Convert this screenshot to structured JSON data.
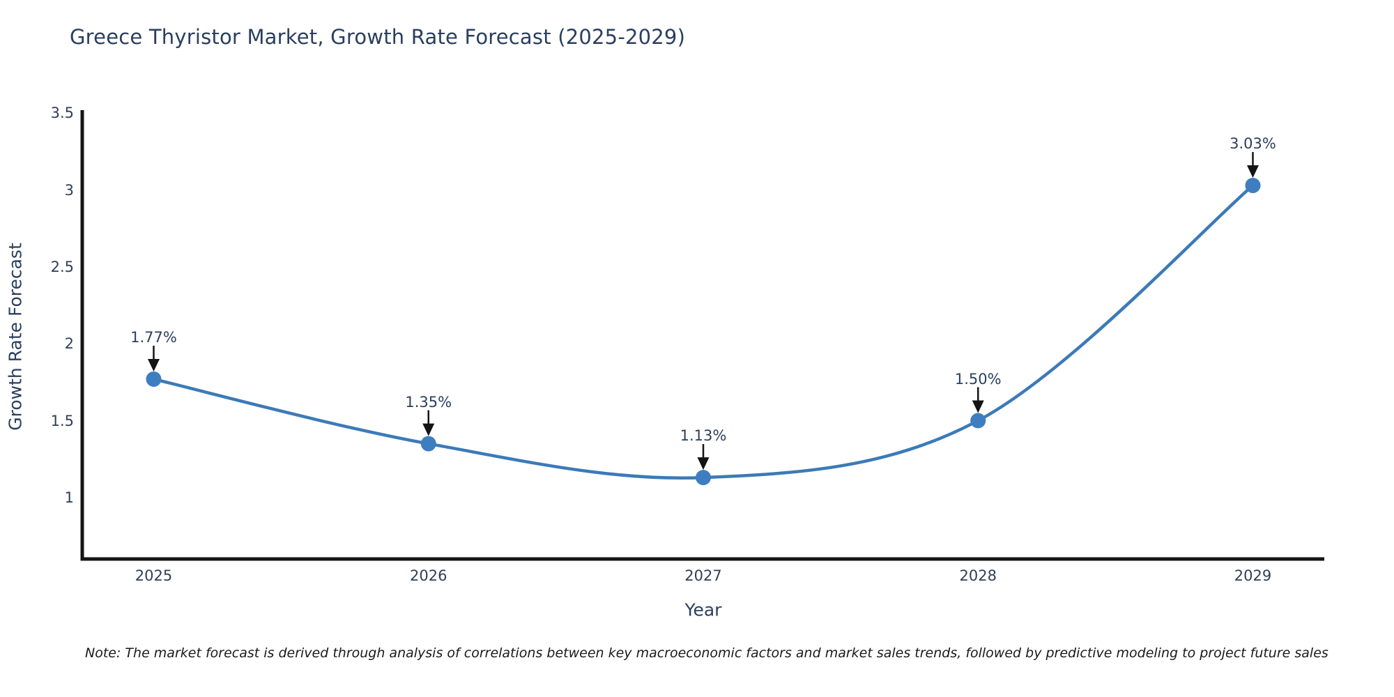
{
  "chart_data": {
    "type": "line",
    "title": "Greece Thyristor Market, Growth Rate Forecast (2025-2029)",
    "xlabel": "Year",
    "ylabel": "Growth Rate Forecast",
    "x": [
      2025,
      2026,
      2027,
      2028,
      2029
    ],
    "series": [
      {
        "name": "Growth Rate Forecast",
        "values": [
          1.77,
          1.35,
          1.13,
          1.5,
          3.03
        ]
      }
    ],
    "point_labels": [
      "1.77%",
      "1.35%",
      "1.13%",
      "1.50%",
      "3.03%"
    ],
    "xtick_labels": [
      "2025",
      "2026",
      "2027",
      "2028",
      "2029"
    ],
    "ytick_values": [
      1,
      1.5,
      2,
      2.5,
      3,
      3.5
    ],
    "ytick_labels": [
      "1",
      "1.5",
      "2",
      "2.5",
      "3",
      "3.5"
    ],
    "xlim": [
      2024.74,
      2029.26
    ],
    "ylim": [
      0.6,
      3.52
    ],
    "grid": false,
    "legend_position": "none",
    "line_shape": "spline",
    "colors": {
      "line": "#3c7ab7",
      "marker": "#3e7ec0",
      "axis": "#141414",
      "annotation_arrow": "#141414",
      "title_text": "#2a3f5f"
    }
  },
  "note": {
    "text": "Note: The market forecast is derived through analysis of correlations between key macroeconomic factors and market sales trends, followed by predictive modeling to project future sales"
  }
}
